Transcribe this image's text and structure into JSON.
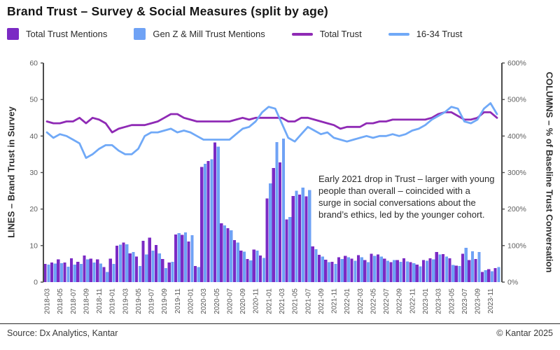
{
  "title": "Brand Trust – Survey & Social Measures (split by age)",
  "legend": [
    {
      "label": "Total Trust Mentions",
      "type": "square",
      "color": "#7b2ac4"
    },
    {
      "label": "Gen Z & Mill Trust Mentions",
      "type": "square",
      "color": "#6fa2f5"
    },
    {
      "label": "Total Trust",
      "type": "line",
      "color": "#8f2ab5"
    },
    {
      "label": "16-34 Trust",
      "type": "line",
      "color": "#70a9f7"
    }
  ],
  "annotation": "Early 2021 drop in Trust – larger with young people than overall – coincided with a surge in social conversations about the brand’s ethics, led by the younger cohort.",
  "left_axis": {
    "title": "LINES – Brand Trust in Survey",
    "ticks": [
      0,
      10,
      20,
      30,
      40,
      50,
      60
    ],
    "lim": [
      0,
      60
    ]
  },
  "right_axis": {
    "title": "COLUMNS – % of Baseline Trust Conversation",
    "ticks": [
      "0%",
      "100%",
      "200%",
      "300%",
      "400%",
      "500%",
      "600%"
    ],
    "lim_pct": [
      0,
      600
    ]
  },
  "footer": {
    "source": "Source: Dx Analytics, Kantar",
    "copyright": "© Kantar 2025"
  },
  "chart_data": {
    "type": "combo",
    "x": [
      "2018-03",
      "2018-04",
      "2018-05",
      "2018-06",
      "2018-07",
      "2018-08",
      "2018-09",
      "2018-10",
      "2018-11",
      "2018-12",
      "2019-01",
      "2019-02",
      "2019-03",
      "2019-04",
      "2019-05",
      "2019-06",
      "2019-07",
      "2019-08",
      "2019-09",
      "2019-10",
      "2019-11",
      "2019-12",
      "2020-01",
      "2020-02",
      "2020-03",
      "2020-04",
      "2020-05",
      "2020-06",
      "2020-07",
      "2020-08",
      "2020-09",
      "2020-10",
      "2020-11",
      "2020-12",
      "2021-01",
      "2021-02",
      "2021-03",
      "2021-04",
      "2021-05",
      "2021-06",
      "2021-07",
      "2021-08",
      "2021-09",
      "2021-10",
      "2021-11",
      "2021-12",
      "2022-01",
      "2022-02",
      "2022-03",
      "2022-04",
      "2022-05",
      "2022-06",
      "2022-07",
      "2022-08",
      "2022-09",
      "2022-10",
      "2022-11",
      "2022-12",
      "2023-01",
      "2023-02",
      "2023-03",
      "2023-04",
      "2023-05",
      "2023-06",
      "2023-07",
      "2023-08",
      "2023-09",
      "2023-10",
      "2023-11",
      "2023-12"
    ],
    "x_tick_every": 2,
    "left_ylim": [
      0,
      60
    ],
    "right_ylim_pct": [
      0,
      600
    ],
    "grid": false,
    "legend_position": "top",
    "series": [
      {
        "name": "Total Trust Mentions",
        "type": "bar",
        "axis": "right",
        "unit": "% of baseline",
        "color": "#7b2ac4",
        "values_pct": [
          50,
          54,
          62,
          54,
          65,
          56,
          73,
          64,
          62,
          41,
          64,
          100,
          108,
          79,
          70,
          113,
          122,
          102,
          63,
          54,
          130,
          129,
          111,
          44,
          315,
          332,
          382,
          161,
          148,
          115,
          86,
          63,
          89,
          73,
          229,
          312,
          328,
          172,
          236,
          240,
          235,
          98,
          75,
          61,
          56,
          68,
          72,
          64,
          74,
          60,
          78,
          76,
          64,
          55,
          60,
          65,
          55,
          48,
          60,
          65,
          82,
          77,
          65,
          45,
          78,
          60,
          63,
          28,
          35,
          38
        ]
      },
      {
        "name": "Gen Z & Mill Trust Mentions",
        "type": "bar",
        "axis": "right",
        "unit": "% of baseline",
        "color": "#6fa2f5",
        "values_pct": [
          48,
          51,
          52,
          42,
          48,
          50,
          62,
          54,
          51,
          28,
          50,
          103,
          104,
          82,
          44,
          76,
          86,
          79,
          38,
          56,
          134,
          136,
          128,
          41,
          324,
          336,
          371,
          155,
          142,
          108,
          83,
          59,
          86,
          66,
          270,
          383,
          393,
          178,
          250,
          259,
          252,
          90,
          70,
          55,
          50,
          63,
          68,
          58,
          68,
          55,
          72,
          70,
          58,
          60,
          56,
          57,
          52,
          43,
          58,
          62,
          76,
          70,
          47,
          44,
          94,
          84,
          82,
          33,
          30,
          41
        ]
      },
      {
        "name": "Total Trust",
        "type": "line",
        "axis": "left",
        "unit": "survey trust score",
        "color": "#8f2ab5",
        "values": [
          44,
          43.5,
          43.5,
          44,
          44,
          45,
          43.5,
          45,
          44.5,
          43.5,
          41,
          42,
          42.5,
          43,
          43,
          43,
          43.5,
          44,
          45,
          46,
          46,
          45,
          44.5,
          44,
          44,
          44,
          44,
          44,
          44,
          44.5,
          45,
          44.5,
          45,
          45,
          45,
          45,
          45,
          44,
          44,
          45,
          45,
          44.5,
          44,
          43.5,
          43,
          42,
          42.5,
          42.5,
          42.5,
          43.5,
          43.5,
          44,
          44,
          44.5,
          44.5,
          44.5,
          44.5,
          44.5,
          44.5,
          45,
          46,
          46.5,
          46.5,
          45.5,
          44.5,
          44.5,
          45,
          46.5,
          46.5,
          45
        ]
      },
      {
        "name": "16-34 Trust",
        "type": "line",
        "axis": "left",
        "unit": "survey trust score",
        "color": "#70a9f7",
        "values": [
          41,
          39.5,
          40.5,
          40,
          39,
          38,
          34,
          35,
          36.5,
          37.5,
          37.5,
          36,
          35,
          35,
          36.5,
          40,
          41,
          41,
          41.5,
          42,
          41,
          41.5,
          41,
          40,
          39,
          39,
          39,
          39,
          39,
          40.5,
          42,
          42.5,
          44,
          46.5,
          48,
          47.5,
          43.5,
          39.5,
          38.5,
          40.5,
          42.5,
          41.5,
          40.5,
          41,
          39.5,
          39,
          38.5,
          39,
          39.5,
          40,
          39.5,
          40,
          40,
          40.5,
          40,
          40.5,
          41.5,
          42,
          43,
          44.5,
          45.5,
          46.5,
          48,
          47.5,
          44,
          43.5,
          44.5,
          47.5,
          49,
          46
        ]
      }
    ]
  }
}
